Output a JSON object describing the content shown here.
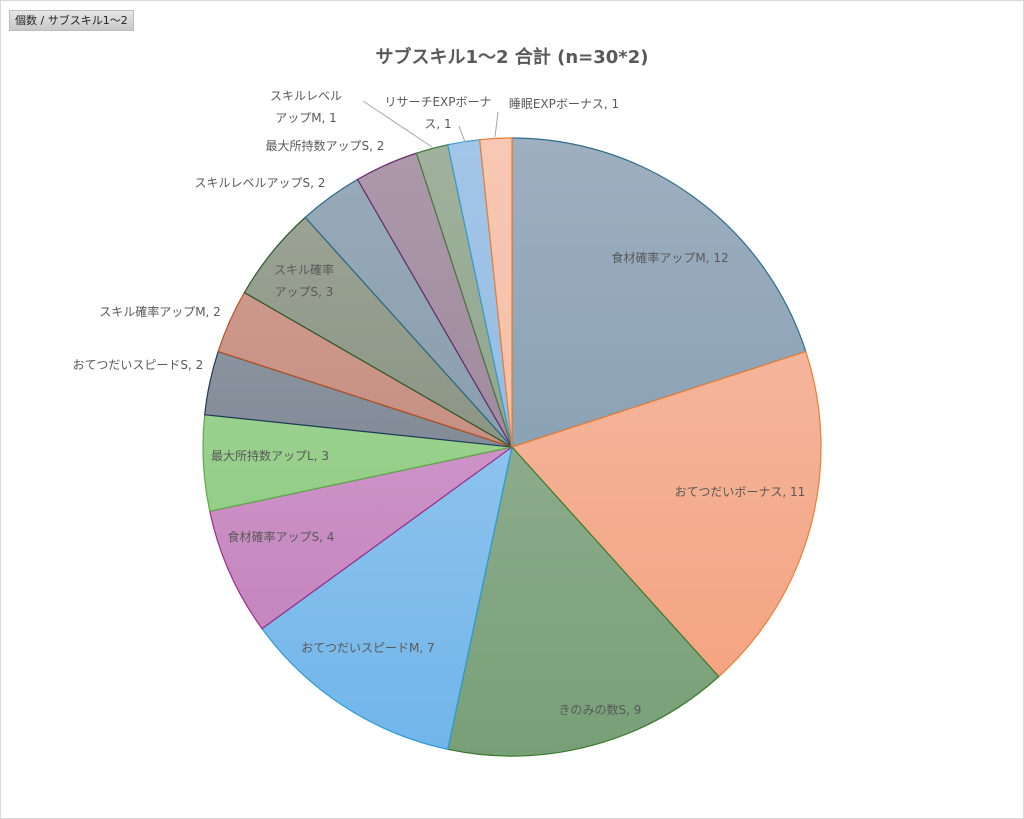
{
  "field_button": "個数 / サブスキル1～2",
  "chart_data": {
    "type": "pie",
    "title": "サブスキル1～2 合計 (n=30*2)",
    "categories": [
      "食材確率アップM",
      "おてつだいボーナス",
      "きのみの数S",
      "おてつだいスピードM",
      "食材確率アップS",
      "最大所持数アップL",
      "おてつだいスピードS",
      "スキル確率アップM",
      "スキル確率アップS",
      "スキルレベルアップS",
      "最大所持数アップS",
      "スキルレベルアップM",
      "リサーチEXPボーナス",
      "睡眠EXPボーナス"
    ],
    "values": [
      12,
      11,
      9,
      7,
      4,
      3,
      2,
      2,
      3,
      2,
      2,
      1,
      1,
      1
    ],
    "labels": [
      "食材確率アップM, 12",
      "おてつだいボーナス, 11",
      "きのみの数S, 9",
      "おてつだいスピードM, 7",
      "食材確率アップS, 4",
      "最大所持数アップL, 3",
      "おてつだいスピードS, 2",
      "スキル確率アップM, 2",
      [
        "スキル確率",
        "アップS, 3"
      ],
      "スキルレベルアップS, 2",
      "最大所持数アップS, 2",
      [
        "スキルレベル",
        "アップM, 1"
      ],
      [
        "リサーチEXPボーナ",
        "ス, 1"
      ],
      "睡眠EXPボーナス, 1"
    ],
    "colors": [
      [
        "#9eafbf",
        "#7896ac",
        "#2e6e8e"
      ],
      [
        "#f5c0aa",
        "#f4a07d",
        "#ed7d31"
      ],
      [
        "#a0b69f",
        "#78a078",
        "#3b7a2e"
      ],
      [
        "#aad0f0",
        "#70b5ea",
        "#2e9bd6"
      ],
      [
        "#d9aad5",
        "#c07cb8",
        "#9b2b8e"
      ],
      [
        "#aad8a2",
        "#86c776",
        "#5bab44"
      ],
      [
        "#99a1ab",
        "#6c7684",
        "#1f3b5a"
      ],
      [
        "#d5a094",
        "#b77f72",
        "#b5501e"
      ],
      [
        "#a0a798",
        "#788272",
        "#2a5a2a"
      ],
      [
        "#99abba",
        "#7b91a4",
        "#2a6a8a"
      ],
      [
        "#ad99ab",
        "#937d92",
        "#6a2a6a"
      ],
      [
        "#a0b29d",
        "#829880",
        "#4a7a3a"
      ],
      [
        "#a3c6e7",
        "#84b2df",
        "#3a9ad4"
      ],
      [
        "#f7c8b3",
        "#f4b59b",
        "#ed7d31"
      ]
    ],
    "legend": "none",
    "data_labels": "category, value"
  }
}
